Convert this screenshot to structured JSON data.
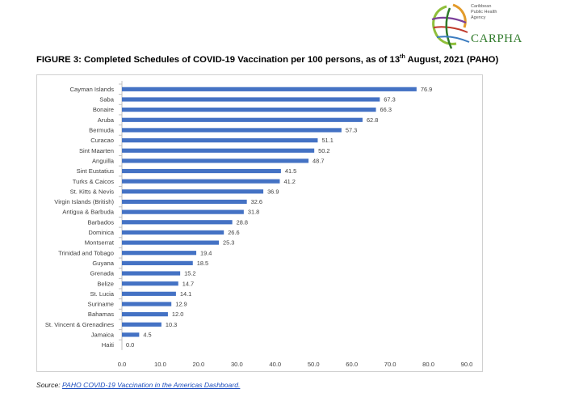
{
  "logo": {
    "lines": [
      "Caribbean",
      "Public Health",
      "Agency"
    ],
    "brand": "CARPHA"
  },
  "figure": {
    "title_main": "FIGURE 3: Completed Schedules of COVID-19 Vaccination per 100 persons, as of 13",
    "title_sup": "th",
    "title_tail": " August, 2021 (PAHO)"
  },
  "source": {
    "label": "Source:",
    "link_text": "PAHO COVID-19 Vaccination in the Americas Dashboard."
  },
  "chart_data": {
    "type": "bar",
    "orientation": "horizontal",
    "categories": [
      "Cayman Islands",
      "Saba",
      "Bonaire",
      "Aruba",
      "Bermuda",
      "Curacao",
      "Sint Maarten",
      "Anguilla",
      "Sint Eustatius",
      "Turks & Caicos",
      "St. Kitts & Nevis",
      "Virgin Islands (British)",
      "Antigua & Barbuda",
      "Barbados",
      "Dominica",
      "Montserrat",
      "Trinidad and Tobago",
      "Guyana",
      "Grenada",
      "Belize",
      "St. Lucia",
      "Suriname",
      "Bahamas",
      "St. Vincent & Grenadines",
      "Jamaica",
      "Haiti"
    ],
    "values": [
      76.9,
      67.3,
      66.3,
      62.8,
      57.3,
      51.1,
      50.2,
      48.7,
      41.5,
      41.2,
      36.9,
      32.6,
      31.8,
      28.8,
      26.6,
      25.3,
      19.4,
      18.5,
      15.2,
      14.7,
      14.1,
      12.9,
      12.0,
      10.3,
      4.5,
      0.0
    ],
    "value_labels": [
      "76.9",
      "67.3",
      "66.3",
      "62.8",
      "57.3",
      "51.1",
      "50.2",
      "48.7",
      "41.5",
      "41.2",
      "36.9",
      "32.6",
      "31.8",
      "28.8",
      "26.6",
      "25.3",
      "19.4",
      "18.5",
      "15.2",
      "14.7",
      "14.1",
      "12.9",
      "12.0",
      "10.3",
      "4.5",
      "0.0"
    ],
    "xlim": [
      0,
      90
    ],
    "xticks": [
      "0.0",
      "10.0",
      "20.0",
      "30.0",
      "40.0",
      "50.0",
      "60.0",
      "70.0",
      "80.0",
      "90.0"
    ],
    "grid": false,
    "bar_color": "#4472c4"
  }
}
